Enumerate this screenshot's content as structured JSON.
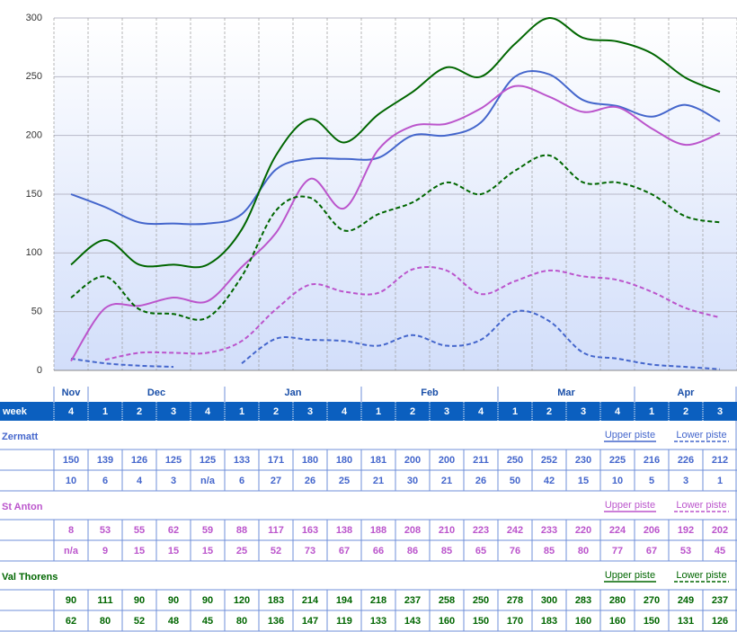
{
  "chart_data": {
    "type": "line",
    "row_label": "week",
    "categories": [
      4,
      1,
      2,
      3,
      4,
      1,
      2,
      3,
      4,
      1,
      2,
      3,
      4,
      1,
      2,
      3,
      4,
      1,
      2,
      3
    ],
    "months": [
      "Nov",
      "Dec",
      null,
      null,
      null,
      "Jan",
      null,
      null,
      null,
      "Feb",
      null,
      null,
      null,
      "Mar",
      null,
      null,
      null,
      "Apr",
      null,
      null
    ],
    "ylim": [
      0,
      300
    ],
    "yticks": [
      0,
      50,
      100,
      150,
      200,
      250,
      300
    ],
    "grid": true,
    "resorts": [
      {
        "name": "Zermatt",
        "color": "#4466cc",
        "series": [
          {
            "name": "Upper piste",
            "style": "solid",
            "values": [
              150,
              139,
              126,
              125,
              125,
              133,
              171,
              180,
              180,
              181,
              200,
              200,
              211,
              250,
              252,
              230,
              225,
              216,
              226,
              212
            ]
          },
          {
            "name": "Lower piste",
            "style": "dashed",
            "values": [
              10,
              6,
              4,
              3,
              null,
              6,
              27,
              26,
              25,
              21,
              30,
              21,
              26,
              50,
              42,
              15,
              10,
              5,
              3,
              1
            ],
            "value_labels": [
              null,
              null,
              null,
              null,
              "n/a",
              null,
              null,
              null,
              null,
              null,
              null,
              null,
              null,
              null,
              null,
              null,
              null,
              null,
              null,
              null
            ]
          }
        ]
      },
      {
        "name": "St Anton",
        "color": "#bb55cc",
        "series": [
          {
            "name": "Upper piste",
            "style": "solid",
            "values": [
              8,
              53,
              55,
              62,
              59,
              88,
              117,
              163,
              138,
              188,
              208,
              210,
              223,
              242,
              233,
              220,
              224,
              206,
              192,
              202
            ]
          },
          {
            "name": "Lower piste",
            "style": "dashed",
            "values": [
              null,
              9,
              15,
              15,
              15,
              25,
              52,
              73,
              67,
              66,
              86,
              85,
              65,
              76,
              85,
              80,
              77,
              67,
              53,
              45
            ],
            "value_labels": [
              "n/a",
              null,
              null,
              null,
              null,
              null,
              null,
              null,
              null,
              null,
              null,
              null,
              null,
              null,
              null,
              null,
              null,
              null,
              null,
              null
            ]
          }
        ]
      },
      {
        "name": "Val Thorens",
        "color": "#006600",
        "series": [
          {
            "name": "Upper piste",
            "style": "solid",
            "values": [
              90,
              111,
              90,
              90,
              90,
              120,
              183,
              214,
              194,
              218,
              237,
              258,
              250,
              278,
              300,
              283,
              280,
              270,
              249,
              237
            ]
          },
          {
            "name": "Lower piste",
            "style": "dashed",
            "values": [
              62,
              80,
              52,
              48,
              45,
              80,
              136,
              147,
              119,
              133,
              143,
              160,
              150,
              170,
              183,
              160,
              160,
              150,
              131,
              126
            ]
          }
        ]
      }
    ]
  }
}
